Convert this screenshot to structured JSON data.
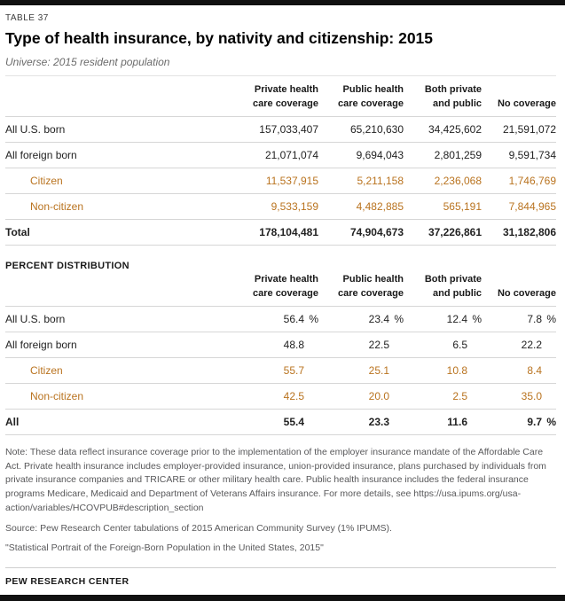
{
  "header": {
    "table_label": "TABLE 37",
    "title": "Type of health insurance, by nativity and citizenship: 2015",
    "universe": "Universe: 2015 resident population"
  },
  "columns": [
    {
      "line1": "Private health",
      "line2": "care coverage"
    },
    {
      "line1": "Public health",
      "line2": "care coverage"
    },
    {
      "line1": "Both private",
      "line2": "and public"
    },
    {
      "line1": "",
      "line2": "No coverage"
    }
  ],
  "counts": {
    "rows": [
      {
        "label": "All U.S. born",
        "values": [
          "157,033,407",
          "65,210,630",
          "34,425,602",
          "21,591,072"
        ]
      },
      {
        "label": "All foreign born",
        "values": [
          "21,071,074",
          "9,694,043",
          "2,801,259",
          "9,591,734"
        ]
      },
      {
        "label": "Citizen",
        "values": [
          "11,537,915",
          "5,211,158",
          "2,236,068",
          "1,746,769"
        ]
      },
      {
        "label": "Non-citizen",
        "values": [
          "9,533,159",
          "4,482,885",
          "565,191",
          "7,844,965"
        ]
      },
      {
        "label": "Total",
        "values": [
          "178,104,481",
          "74,904,673",
          "37,226,861",
          "31,182,806"
        ]
      }
    ]
  },
  "pct": {
    "section_label": "PERCENT DISTRIBUTION",
    "rows": [
      {
        "label": "All U.S. born",
        "values": [
          "56.4",
          "23.4",
          "12.4",
          "7.8"
        ],
        "units": [
          "%",
          "%",
          "%",
          "%"
        ]
      },
      {
        "label": "All foreign born",
        "values": [
          "48.8",
          "22.5",
          "6.5",
          "22.2"
        ],
        "units": [
          "",
          "",
          "",
          ""
        ]
      },
      {
        "label": "Citizen",
        "values": [
          "55.7",
          "25.1",
          "10.8",
          "8.4"
        ],
        "units": [
          "",
          "",
          "",
          ""
        ]
      },
      {
        "label": "Non-citizen",
        "values": [
          "42.5",
          "20.0",
          "2.5",
          "35.0"
        ],
        "units": [
          "",
          "",
          "",
          ""
        ]
      },
      {
        "label": "All",
        "values": [
          "55.4",
          "23.3",
          "11.6",
          "9.7"
        ],
        "units": [
          "",
          "",
          "",
          "%"
        ]
      }
    ]
  },
  "notes": {
    "note": "Note: These data reflect insurance coverage prior to the implementation of the employer insurance mandate of the Affordable Care Act. Private health insurance includes employer-provided insurance, union-provided insurance, plans purchased by individuals from private insurance companies and TRICARE or other military health care. Public health insurance includes the federal insurance programs Medicare, Medicaid and Department of Veterans Affairs insurance. For more details, see https://usa.ipums.org/usa-action/variables/HCOVPUB#description_section",
    "source": "Source: Pew Research Center tabulations of 2015 American Community Survey (1% IPUMS).",
    "credit": "\"Statistical Portrait of the Foreign-Born Population in the United States, 2015\""
  },
  "footer": {
    "brand": "PEW RESEARCH CENTER"
  },
  "colors": {
    "accent": "#B9731F",
    "rule": "#D6D6D6",
    "bar": "#111111"
  },
  "chart_data": [
    {
      "type": "table",
      "title": "Type of health insurance, by nativity and citizenship: 2015",
      "subtitle": "Universe: 2015 resident population",
      "columns": [
        "Private health care coverage",
        "Public health care coverage",
        "Both private and public",
        "No coverage"
      ],
      "rows": [
        {
          "label": "All U.S. born",
          "values": [
            157033407,
            65210630,
            34425602,
            21591072
          ]
        },
        {
          "label": "All foreign born",
          "values": [
            21071074,
            9694043,
            2801259,
            9591734
          ]
        },
        {
          "label": "Citizen",
          "values": [
            11537915,
            5211158,
            2236068,
            1746769
          ]
        },
        {
          "label": "Non-citizen",
          "values": [
            9533159,
            4482885,
            565191,
            7844965
          ]
        },
        {
          "label": "Total",
          "values": [
            178104481,
            74904673,
            37226861,
            31182806
          ]
        }
      ]
    },
    {
      "type": "table",
      "title": "PERCENT DISTRIBUTION",
      "unit": "%",
      "columns": [
        "Private health care coverage",
        "Public health care coverage",
        "Both private and public",
        "No coverage"
      ],
      "rows": [
        {
          "label": "All U.S. born",
          "values": [
            56.4,
            23.4,
            12.4,
            7.8
          ]
        },
        {
          "label": "All foreign born",
          "values": [
            48.8,
            22.5,
            6.5,
            22.2
          ]
        },
        {
          "label": "Citizen",
          "values": [
            55.7,
            25.1,
            10.8,
            8.4
          ]
        },
        {
          "label": "Non-citizen",
          "values": [
            42.5,
            20.0,
            2.5,
            35.0
          ]
        },
        {
          "label": "All",
          "values": [
            55.4,
            23.3,
            11.6,
            9.7
          ]
        }
      ]
    }
  ]
}
